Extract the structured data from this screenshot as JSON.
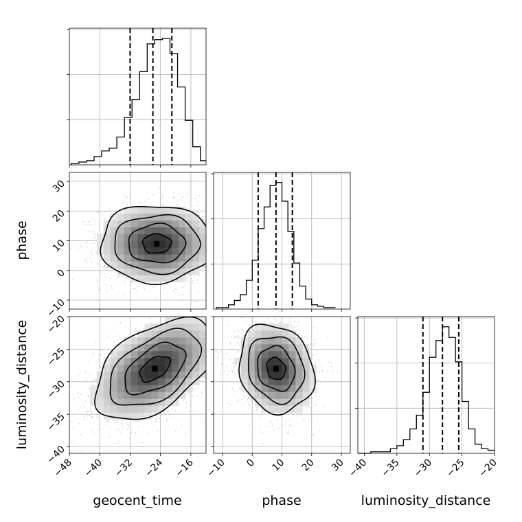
{
  "chart_data": {
    "type": "corner",
    "parameters": [
      "geocent_time",
      "phase",
      "luminosity_distance"
    ],
    "axis_labels": {
      "x": [
        "geocent_time",
        "phase",
        "luminosity_distance"
      ],
      "y": [
        "phase",
        "luminosity_distance"
      ]
    },
    "ranges": {
      "geocent_time": [
        -48,
        -12
      ],
      "phase": [
        -13,
        33
      ],
      "luminosity_distance": [
        -41,
        -20
      ]
    },
    "ticks": {
      "geocent_time": [
        -48,
        -40,
        -32,
        -24,
        -16
      ],
      "phase": [
        -10,
        0,
        10,
        20,
        30
      ],
      "luminosity_distance": [
        -40,
        -35,
        -30,
        -25,
        -20
      ]
    },
    "tick_labels": {
      "geocent_time": [
        "−48",
        "−40",
        "−32",
        "−24",
        "−16"
      ],
      "phase": [
        "−10",
        "0",
        "10",
        "20",
        "30"
      ],
      "luminosity_distance": [
        "−40",
        "−35",
        "−30",
        "−25",
        "−20"
      ]
    },
    "quantiles": {
      "geocent_time": [
        -32,
        -26,
        -21
      ],
      "phase": [
        2,
        8,
        13.5
      ],
      "luminosity_distance": [
        -31,
        -28,
        -25.5
      ]
    },
    "histograms": {
      "geocent_time": {
        "edges": [
          -47.5,
          -45.5,
          -43.5,
          -41.5,
          -39.5,
          -37.5,
          -35.5,
          -33.5,
          -31.5,
          -29.5,
          -27.5,
          -25.5,
          -23.5,
          -21.5,
          -19.5,
          -17.5,
          -15.5,
          -13.5,
          -11.5
        ],
        "counts": [
          1,
          2,
          3,
          6,
          10,
          12,
          20,
          34,
          47,
          67,
          87,
          90,
          91,
          80,
          56,
          32,
          13,
          3
        ]
      },
      "phase": {
        "edges": [
          -12,
          -10,
          -8,
          -6,
          -4,
          -2,
          0,
          2,
          4,
          6,
          8,
          10,
          12,
          14,
          16,
          18,
          20,
          22,
          24,
          26,
          28
        ],
        "counts": [
          1,
          1,
          3,
          6,
          10,
          20,
          34,
          56,
          71,
          86,
          88,
          75,
          54,
          32,
          16,
          7,
          3,
          2,
          1,
          1
        ]
      },
      "luminosity_distance": {
        "edges": [
          -41,
          -40,
          -39,
          -38,
          -37,
          -36,
          -35,
          -34,
          -33,
          -32,
          -31,
          -30,
          -29,
          -28,
          -27,
          -26,
          -25,
          -24,
          -23,
          -22,
          -21,
          -20
        ],
        "counts": [
          0,
          0,
          1,
          1,
          1,
          3,
          5,
          9,
          16,
          25,
          40,
          63,
          74,
          83,
          76,
          60,
          34,
          16,
          6,
          3,
          2
        ]
      }
    },
    "joint": [
      {
        "x": "geocent_time",
        "y": "phase",
        "mean": [
          -25,
          9
        ],
        "sd": [
          7.5,
          6.5
        ],
        "corr": 0.0,
        "contour_levels": [
          0.5,
          1.0,
          1.5,
          2.0
        ]
      },
      {
        "x": "geocent_time",
        "y": "luminosity_distance",
        "mean": [
          -25.5,
          -28
        ],
        "sd": [
          8,
          3.9
        ],
        "corr": 0.5,
        "contour_levels": [
          0.5,
          1.0,
          1.5,
          2.0
        ]
      },
      {
        "x": "phase",
        "y": "luminosity_distance",
        "mean": [
          8,
          -28
        ],
        "sd": [
          6.3,
          3.4
        ],
        "corr": -0.15,
        "contour_levels": [
          0.5,
          1.0,
          1.5,
          2.0
        ]
      }
    ],
    "grid": true
  }
}
